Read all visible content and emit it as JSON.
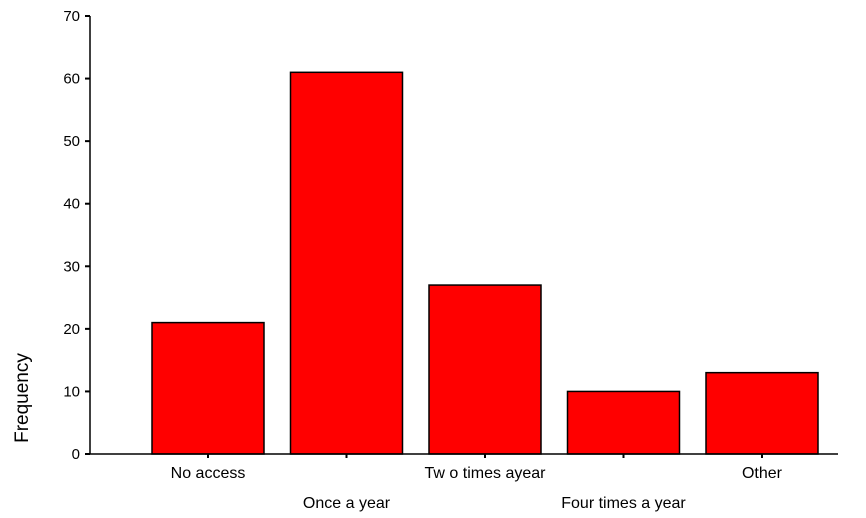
{
  "chart_data": {
    "type": "bar",
    "title": "",
    "xlabel": "",
    "ylabel": "Frequency",
    "categories": [
      "No access",
      "Once a year",
      "Two times ayear",
      "Four times a year",
      "Other"
    ],
    "category_labels_displayed": [
      "No access",
      "Once a year",
      "Tw o times ayear",
      "Four times a year",
      "Other"
    ],
    "values": [
      21,
      61,
      27,
      10,
      13
    ],
    "ylim": [
      0,
      70
    ],
    "yticks": [
      0,
      10,
      20,
      30,
      40,
      50,
      60,
      70
    ],
    "grid": false,
    "legend": "none",
    "colors": {
      "bar_fill": "#ff0000",
      "bar_stroke": "#000000",
      "axis": "#000000",
      "text": "#000000",
      "background": "#ffffff"
    }
  }
}
